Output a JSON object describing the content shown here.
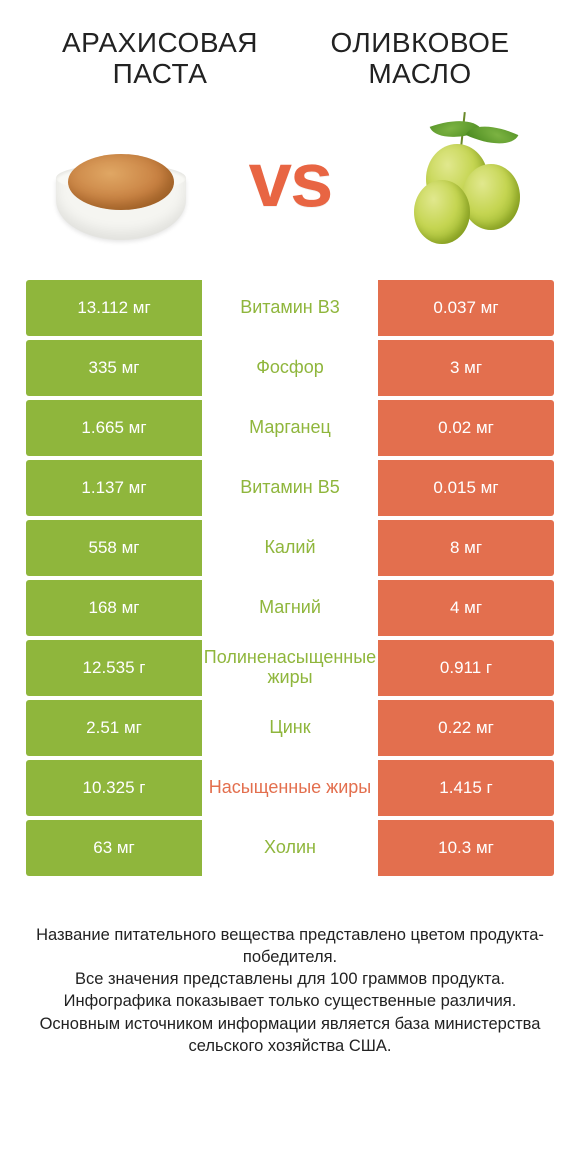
{
  "colors": {
    "green": "#8fb63c",
    "orange": "#e36f4e",
    "mid_bg": "#ffffff"
  },
  "titles": {
    "left": "АРАХИСОВАЯ ПАСТА",
    "right": "ОЛИВКОВОЕ МАСЛО"
  },
  "vs": "vs",
  "rows": [
    {
      "left": "13.112 мг",
      "label": "Витамин B3",
      "right": "0.037 мг",
      "winner": "left"
    },
    {
      "left": "335 мг",
      "label": "Фосфор",
      "right": "3 мг",
      "winner": "left"
    },
    {
      "left": "1.665 мг",
      "label": "Марганец",
      "right": "0.02 мг",
      "winner": "left"
    },
    {
      "left": "1.137 мг",
      "label": "Витамин B5",
      "right": "0.015 мг",
      "winner": "left"
    },
    {
      "left": "558 мг",
      "label": "Калий",
      "right": "8 мг",
      "winner": "left"
    },
    {
      "left": "168 мг",
      "label": "Магний",
      "right": "4 мг",
      "winner": "left"
    },
    {
      "left": "12.535 г",
      "label": "Полиненасыщенные жиры",
      "right": "0.911 г",
      "winner": "left"
    },
    {
      "left": "2.51 мг",
      "label": "Цинк",
      "right": "0.22 мг",
      "winner": "left"
    },
    {
      "left": "10.325 г",
      "label": "Насыщенные жиры",
      "right": "1.415 г",
      "winner": "right"
    },
    {
      "left": "63 мг",
      "label": "Холин",
      "right": "10.3 мг",
      "winner": "left"
    }
  ],
  "footer": {
    "l1": "Название питательного вещества представлено цветом продукта-победителя.",
    "l2": "Все значения представлены для 100 граммов продукта.",
    "l3": "Инфографика показывает только существенные различия.",
    "l4": "Основным источником информации является база министерства сельского хозяйства США."
  }
}
